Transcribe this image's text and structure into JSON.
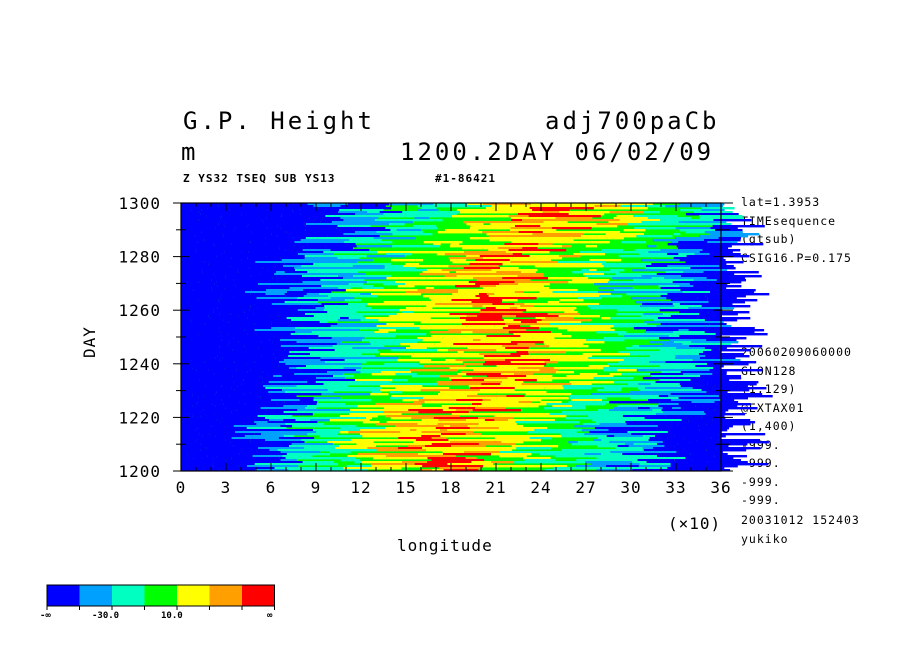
{
  "header": {
    "title_left": "G.P. Height",
    "title_right": "adj700paCb",
    "unit": "m",
    "time_label": "1200.2DAY 06/02/09",
    "subtitle_left": "Z YS32 TSEQ SUB YS13",
    "subtitle_right": "#1-86421"
  },
  "side_info": {
    "top": [
      "lat=1.3953",
      "TIMEsequence",
      "(gtsub)",
      "CSIG16.P=0.175"
    ],
    "middle": [
      "20060209060000",
      "GLON128",
      "(1,129)",
      "@EXTAX01",
      "(1,400)",
      "-999.",
      "-999.",
      "-999.",
      "-999."
    ],
    "bottom": [
      "20031012 152403",
      "yukiko"
    ]
  },
  "colorbar": {
    "colors": [
      "#0000ff",
      "#00a0ff",
      "#00ffc0",
      "#00ff00",
      "#ffff00",
      "#ffa000",
      "#ff0000"
    ],
    "labels": [
      "-∞",
      "-30.0",
      "10.0",
      "∞"
    ]
  },
  "chart_data": {
    "type": "heatmap",
    "xlabel": "longitude",
    "ylabel": "DAY",
    "x_multiplier_label": "(×10)",
    "xlim": [
      0,
      36
    ],
    "ylim": [
      1200,
      1300
    ],
    "x_ticks": [
      "0",
      "3",
      "6",
      "9",
      "12",
      "15",
      "18",
      "21",
      "24",
      "27",
      "30",
      "33",
      "36"
    ],
    "y_ticks": [
      "1200",
      "1220",
      "1240",
      "1260",
      "1280",
      "1300"
    ],
    "levels": [
      -30.0,
      10.0
    ],
    "colors": {
      "low": "#0000ff",
      "mid_low": "#00a0ff",
      "near_zero": "#00ffc0",
      "neutral": "#00ff00",
      "high": "#ffff00",
      "higher": "#ffa000",
      "highest": "#ff0000"
    }
  }
}
